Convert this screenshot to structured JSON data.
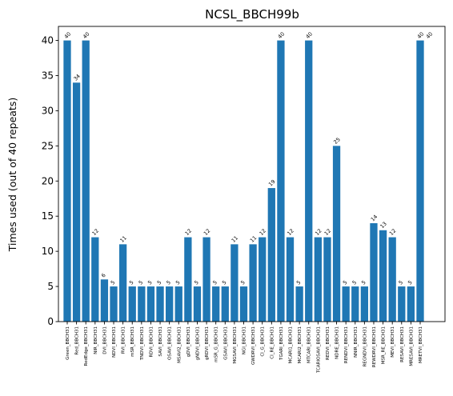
{
  "chart_data": {
    "type": "bar",
    "title": "NCSL_BBCH99b",
    "xlabel": "",
    "ylabel": "Times used (out of 40 repeats)",
    "ylim": [
      0,
      42
    ],
    "yticks": [
      0,
      5,
      10,
      15,
      20,
      25,
      30,
      35,
      40
    ],
    "grid": false,
    "bar_color": "#1f77b4",
    "categories": [
      "Green_BBCH31",
      "Red_BBCH31",
      "RedEdge_BBCH31",
      "NIR_BBCH31",
      "DVI_BBCH31",
      "NDVI_BBCH31",
      "RVI_BBCH31",
      "mSR_BBCH31",
      "TNDVI_BBCH31",
      "RDVI_BBCH31",
      "SAVI_BBCH31",
      "OSAVI_BBCH31",
      "MSAVI2_BBCH31",
      "gDVI_BBCH31",
      "gNDVI_BBCH31",
      "gRDVI_BBCH31",
      "mSR_G_BBCH31",
      "GSAVI_BBCH31",
      "MGSAVI_BBCH31",
      "NGI_BBCH31",
      "GWDRVI_BBCH31",
      "CI_G_BBCH31",
      "CI_RE_BBCH31",
      "TGARI_BBCH31",
      "MCARI1_BBCH31",
      "MCARI2_BBCH31",
      "MTCARI_BBCH31",
      "TCARIOSAVI_BBCH31",
      "REDVI_BBCH31",
      "NDRE_BBCH31",
      "RENDVI_BBCH31",
      "NNIR_BBCH31",
      "REGNDVI_BBCH31",
      "REWDRVI_BBCH31",
      "MSR_RE_BBCH31",
      "MEVI_BBCH31",
      "RESAVI_BBCH31",
      "MRESAVI_BBCH31",
      "MRETVI_BBCH31"
    ],
    "values": [
      40,
      34,
      40,
      12,
      6,
      5,
      11,
      5,
      5,
      5,
      5,
      5,
      5,
      12,
      5,
      12,
      5,
      5,
      11,
      5,
      11,
      12,
      19,
      40,
      12,
      5,
      40,
      12,
      12,
      25,
      5,
      5,
      5,
      14,
      13,
      12,
      5,
      5,
      40
    ],
    "extra_annotations": [
      {
        "after_index": 38,
        "text": "40"
      }
    ]
  }
}
